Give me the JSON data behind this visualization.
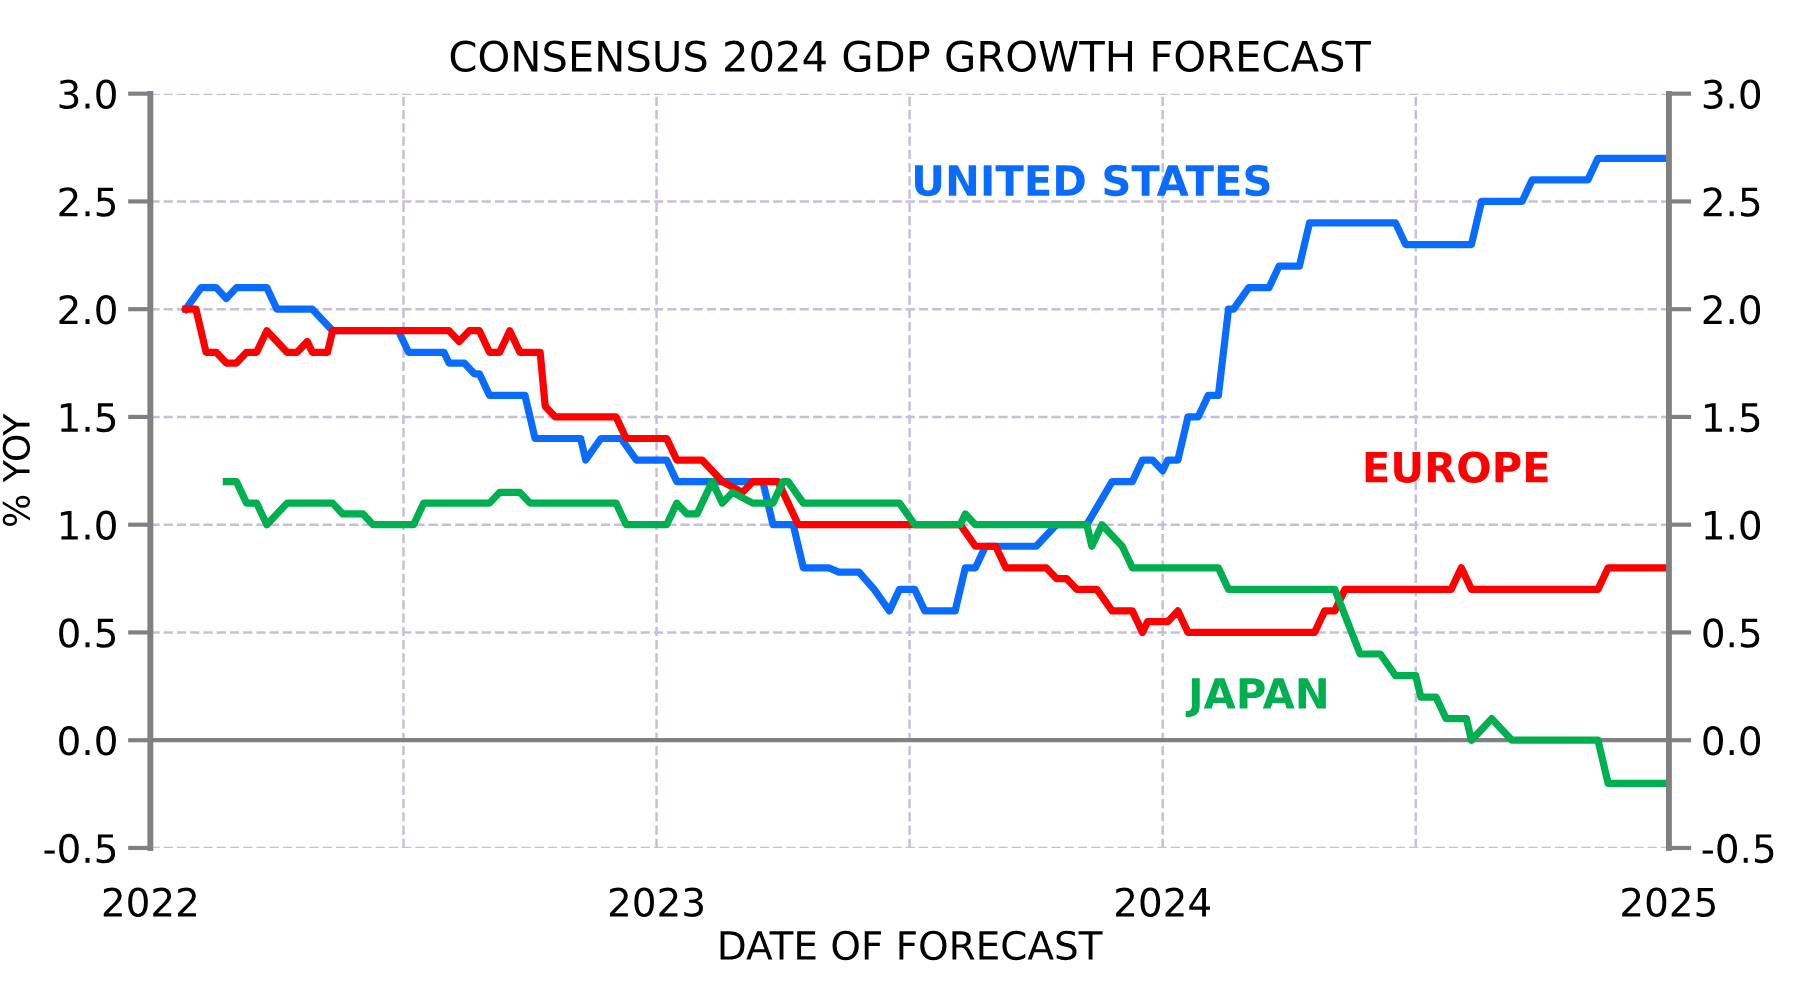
{
  "chart_data": {
    "type": "line",
    "title": "CONSENSUS 2024 GDP GROWTH FORECAST",
    "xlabel": "DATE OF FORECAST",
    "ylabel": "% YOY",
    "xlim": [
      2022,
      2025
    ],
    "xticks": [
      2022,
      {
        "value": 2022.5,
        "label": null
      },
      2023,
      {
        "value": 2023.5,
        "label": null
      },
      2024,
      {
        "value": 2024.5,
        "label": null
      },
      2025
    ],
    "ylim": [
      -0.5,
      3.0
    ],
    "yticks": [
      {
        "value": -0.5,
        "label": "-0.5"
      },
      {
        "value": 0,
        "label": "0.0"
      },
      {
        "value": 0.5,
        "label": "0.5"
      },
      {
        "value": 1,
        "label": "1.0"
      },
      {
        "value": 1.5,
        "label": "1.5"
      },
      {
        "value": 2,
        "label": "2.0"
      },
      {
        "value": 2.5,
        "label": "2.5"
      },
      {
        "value": 3,
        "label": "3.0"
      }
    ],
    "y2lim": [
      -0.5,
      3.0
    ],
    "y2ticks": [
      {
        "value": -0.5,
        "label": "-0.5"
      },
      {
        "value": 0,
        "label": "0.0"
      },
      {
        "value": 0.5,
        "label": "0.5"
      },
      {
        "value": 1,
        "label": "1.0"
      },
      {
        "value": 1.5,
        "label": "1.5"
      },
      {
        "value": 2,
        "label": "2.0"
      },
      {
        "value": 2.5,
        "label": "2.5"
      },
      {
        "value": 3,
        "label": "3.0"
      }
    ],
    "grid": true,
    "line_style": "solid",
    "ref_lines": [
      {
        "axis": "y",
        "value": 0,
        "label": null,
        "color": "#808080"
      }
    ],
    "series": [
      {
        "name": "UNITED STATES",
        "color": "#0a6cff",
        "x": [
          2022.07,
          2022.1,
          2022.13,
          2022.15,
          2022.17,
          2022.23,
          2022.25,
          2022.32,
          2022.36,
          2022.49,
          2022.51,
          2022.58,
          2022.59,
          2022.62,
          2022.64,
          2022.65,
          2022.67,
          2022.74,
          2022.76,
          2022.85,
          2022.86,
          2022.89,
          2022.93,
          2022.96,
          2023.02,
          2023.04,
          2023.21,
          2023.23,
          2023.27,
          2023.29,
          2023.34,
          2023.36,
          2023.4,
          2023.43,
          2023.46,
          2023.48,
          2023.51,
          2023.53,
          2023.59,
          2023.61,
          2023.63,
          2023.65,
          2023.75,
          2023.79,
          2023.85,
          2023.9,
          2023.94,
          2023.96,
          2023.98,
          2024.0,
          2024.01,
          2024.03,
          2024.05,
          2024.07,
          2024.09,
          2024.11,
          2024.13,
          2024.14,
          2024.17,
          2024.21,
          2024.23,
          2024.27,
          2024.29,
          2024.46,
          2024.48,
          2024.61,
          2024.63,
          2024.71,
          2024.73,
          2024.84,
          2024.86,
          2025.0
        ],
        "values": [
          2.0,
          2.1,
          2.1,
          2.05,
          2.1,
          2.1,
          2.0,
          2.0,
          1.9,
          1.9,
          1.8,
          1.8,
          1.75,
          1.75,
          1.7,
          1.7,
          1.6,
          1.6,
          1.4,
          1.4,
          1.3,
          1.4,
          1.4,
          1.3,
          1.3,
          1.2,
          1.2,
          1.0,
          1.0,
          0.8,
          0.8,
          0.78,
          0.78,
          0.7,
          0.6,
          0.7,
          0.7,
          0.6,
          0.6,
          0.8,
          0.8,
          0.9,
          0.9,
          1.0,
          1.0,
          1.2,
          1.2,
          1.3,
          1.3,
          1.25,
          1.3,
          1.3,
          1.5,
          1.5,
          1.6,
          1.6,
          2.0,
          2.0,
          2.1,
          2.1,
          2.2,
          2.2,
          2.4,
          2.4,
          2.3,
          2.3,
          2.5,
          2.5,
          2.6,
          2.6,
          2.7,
          2.7
        ]
      },
      {
        "name": "EUROPE",
        "color": "#ff0000",
        "x": [
          2022.07,
          2022.09,
          2022.11,
          2022.13,
          2022.15,
          2022.17,
          2022.19,
          2022.21,
          2022.23,
          2022.25,
          2022.27,
          2022.29,
          2022.31,
          2022.32,
          2022.35,
          2022.36,
          2022.59,
          2022.61,
          2022.63,
          2022.65,
          2022.67,
          2022.69,
          2022.71,
          2022.73,
          2022.77,
          2022.78,
          2022.8,
          2022.92,
          2022.94,
          2023.02,
          2023.04,
          2023.09,
          2023.13,
          2023.17,
          2023.19,
          2023.24,
          2023.26,
          2023.28,
          2023.5,
          2023.6,
          2023.63,
          2023.67,
          2023.69,
          2023.77,
          2023.79,
          2023.81,
          2023.83,
          2023.87,
          2023.9,
          2023.94,
          2023.96,
          2023.97,
          2024.01,
          2024.03,
          2024.05,
          2024.3,
          2024.32,
          2024.34,
          2024.36,
          2024.57,
          2024.59,
          2024.61,
          2024.86,
          2024.88,
          2025.0
        ],
        "values": [
          2.0,
          2.0,
          1.8,
          1.8,
          1.75,
          1.75,
          1.8,
          1.8,
          1.9,
          1.85,
          1.8,
          1.8,
          1.85,
          1.8,
          1.8,
          1.9,
          1.9,
          1.85,
          1.9,
          1.9,
          1.8,
          1.8,
          1.9,
          1.8,
          1.8,
          1.55,
          1.5,
          1.5,
          1.4,
          1.4,
          1.3,
          1.3,
          1.2,
          1.15,
          1.2,
          1.2,
          1.1,
          1.0,
          1.0,
          1.0,
          0.9,
          0.9,
          0.8,
          0.8,
          0.75,
          0.75,
          0.7,
          0.7,
          0.6,
          0.6,
          0.5,
          0.55,
          0.55,
          0.6,
          0.5,
          0.5,
          0.6,
          0.6,
          0.7,
          0.7,
          0.8,
          0.7,
          0.7,
          0.8,
          0.8
        ]
      },
      {
        "name": "JAPAN",
        "color": "#00b050",
        "x": [
          2022.15,
          2022.17,
          2022.19,
          2022.21,
          2022.23,
          2022.27,
          2022.36,
          2022.38,
          2022.42,
          2022.44,
          2022.52,
          2022.54,
          2022.67,
          2022.69,
          2022.73,
          2022.75,
          2022.92,
          2022.94,
          2023.02,
          2023.04,
          2023.06,
          2023.08,
          2023.11,
          2023.13,
          2023.15,
          2023.19,
          2023.23,
          2023.25,
          2023.26,
          2023.29,
          2023.48,
          2023.51,
          2023.6,
          2023.61,
          2023.63,
          2023.85,
          2023.86,
          2023.88,
          2023.92,
          2023.94,
          2024.11,
          2024.13,
          2024.34,
          2024.39,
          2024.43,
          2024.46,
          2024.5,
          2024.51,
          2024.54,
          2024.56,
          2024.6,
          2024.61,
          2024.65,
          2024.69,
          2024.86,
          2024.88,
          2025.0
        ],
        "values": [
          1.2,
          1.2,
          1.1,
          1.1,
          1.0,
          1.1,
          1.1,
          1.05,
          1.05,
          1.0,
          1.0,
          1.1,
          1.1,
          1.15,
          1.15,
          1.1,
          1.1,
          1.0,
          1.0,
          1.1,
          1.05,
          1.05,
          1.2,
          1.1,
          1.15,
          1.1,
          1.1,
          1.2,
          1.2,
          1.1,
          1.1,
          1.0,
          1.0,
          1.05,
          1.0,
          1.0,
          0.9,
          1.0,
          0.9,
          0.8,
          0.8,
          0.7,
          0.7,
          0.4,
          0.4,
          0.3,
          0.3,
          0.2,
          0.2,
          0.1,
          0.1,
          0.0,
          0.1,
          0.0,
          0.0,
          -0.2,
          -0.2
        ]
      }
    ]
  }
}
